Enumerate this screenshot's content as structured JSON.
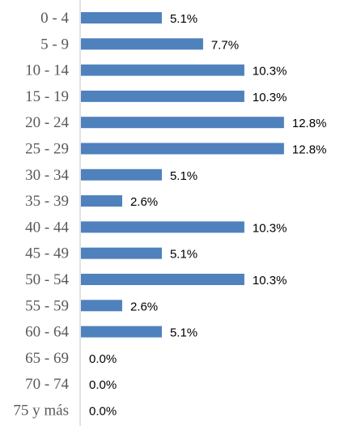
{
  "chart_data": {
    "type": "bar",
    "orientation": "horizontal",
    "categories": [
      "0 - 4",
      "5 - 9",
      "10 - 14",
      "15 - 19",
      "20 - 24",
      "25 - 29",
      "30 - 34",
      "35 - 39",
      "40 - 44",
      "45 - 49",
      "50 - 54",
      "55 - 59",
      "60 - 64",
      "65 - 69",
      "70 - 74",
      "75 y más"
    ],
    "values": [
      5.1,
      7.7,
      10.3,
      10.3,
      12.8,
      12.8,
      5.1,
      2.6,
      10.3,
      5.1,
      10.3,
      2.6,
      5.1,
      0.0,
      0.0,
      0.0
    ],
    "value_labels": [
      "5.1%",
      "7.7%",
      "10.3%",
      "10.3%",
      "12.8%",
      "12.8%",
      "5.1%",
      "2.6%",
      "10.3%",
      "5.1%",
      "10.3%",
      "2.6%",
      "5.1%",
      "0.0%",
      "0.0%",
      "0.0%"
    ],
    "unit": "%",
    "xlim": [
      0,
      14
    ],
    "grid": false,
    "legend": "none",
    "bar_color": "#4f81bd",
    "axis_color": "#d9d9d9",
    "title": "",
    "xlabel": "",
    "ylabel": ""
  }
}
